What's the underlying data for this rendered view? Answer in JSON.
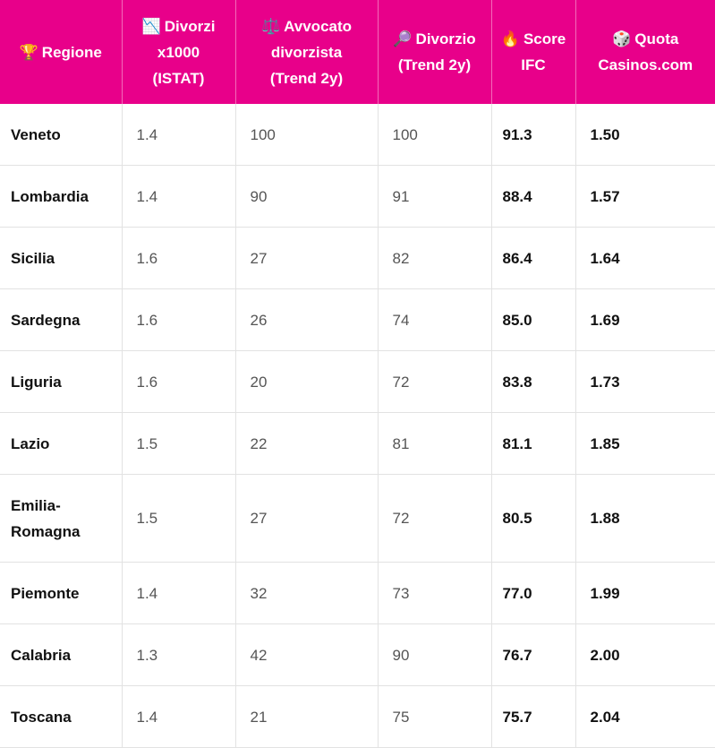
{
  "headers": [
    {
      "icon": "🏆",
      "icon_name": "trophy-icon",
      "lines": [
        "Regione"
      ]
    },
    {
      "icon": "📉",
      "icon_name": "chart-decreasing-icon",
      "lines": [
        "Divorzi",
        "x1000",
        "(ISTAT)"
      ]
    },
    {
      "icon": "⚖️",
      "icon_name": "scales-icon",
      "lines": [
        "Avvocato",
        "divorzista",
        "(Trend 2y)"
      ]
    },
    {
      "icon": "🔎",
      "icon_name": "magnifier-icon",
      "lines": [
        "Divorzio",
        "(Trend 2y)"
      ]
    },
    {
      "icon": "🔥",
      "icon_name": "fire-icon",
      "lines": [
        "Score",
        "IFC"
      ]
    },
    {
      "icon": "🎲",
      "icon_name": "dice-icon",
      "lines": [
        "Quota",
        "Casinos.com"
      ]
    }
  ],
  "rows": [
    {
      "region": [
        "Veneto"
      ],
      "divorzi": "1.4",
      "avvocato": "100",
      "divorzio": "100",
      "score": "91.3",
      "quota": "1.50"
    },
    {
      "region": [
        "Lombardia"
      ],
      "divorzi": "1.4",
      "avvocato": "90",
      "divorzio": "91",
      "score": "88.4",
      "quota": "1.57"
    },
    {
      "region": [
        "Sicilia"
      ],
      "divorzi": "1.6",
      "avvocato": "27",
      "divorzio": "82",
      "score": "86.4",
      "quota": "1.64"
    },
    {
      "region": [
        "Sardegna"
      ],
      "divorzi": "1.6",
      "avvocato": "26",
      "divorzio": "74",
      "score": "85.0",
      "quota": "1.69"
    },
    {
      "region": [
        "Liguria"
      ],
      "divorzi": "1.6",
      "avvocato": "20",
      "divorzio": "72",
      "score": "83.8",
      "quota": "1.73"
    },
    {
      "region": [
        "Lazio"
      ],
      "divorzi": "1.5",
      "avvocato": "22",
      "divorzio": "81",
      "score": "81.1",
      "quota": "1.85"
    },
    {
      "region": [
        "Emilia-",
        "Romagna"
      ],
      "divorzi": "1.5",
      "avvocato": "27",
      "divorzio": "72",
      "score": "80.5",
      "quota": "1.88"
    },
    {
      "region": [
        "Piemonte"
      ],
      "divorzi": "1.4",
      "avvocato": "32",
      "divorzio": "73",
      "score": "77.0",
      "quota": "1.99"
    },
    {
      "region": [
        "Calabria"
      ],
      "divorzi": "1.3",
      "avvocato": "42",
      "divorzio": "90",
      "score": "76.7",
      "quota": "2.00"
    },
    {
      "region": [
        "Toscana"
      ],
      "divorzi": "1.4",
      "avvocato": "21",
      "divorzio": "75",
      "score": "75.7",
      "quota": "2.04"
    }
  ]
}
